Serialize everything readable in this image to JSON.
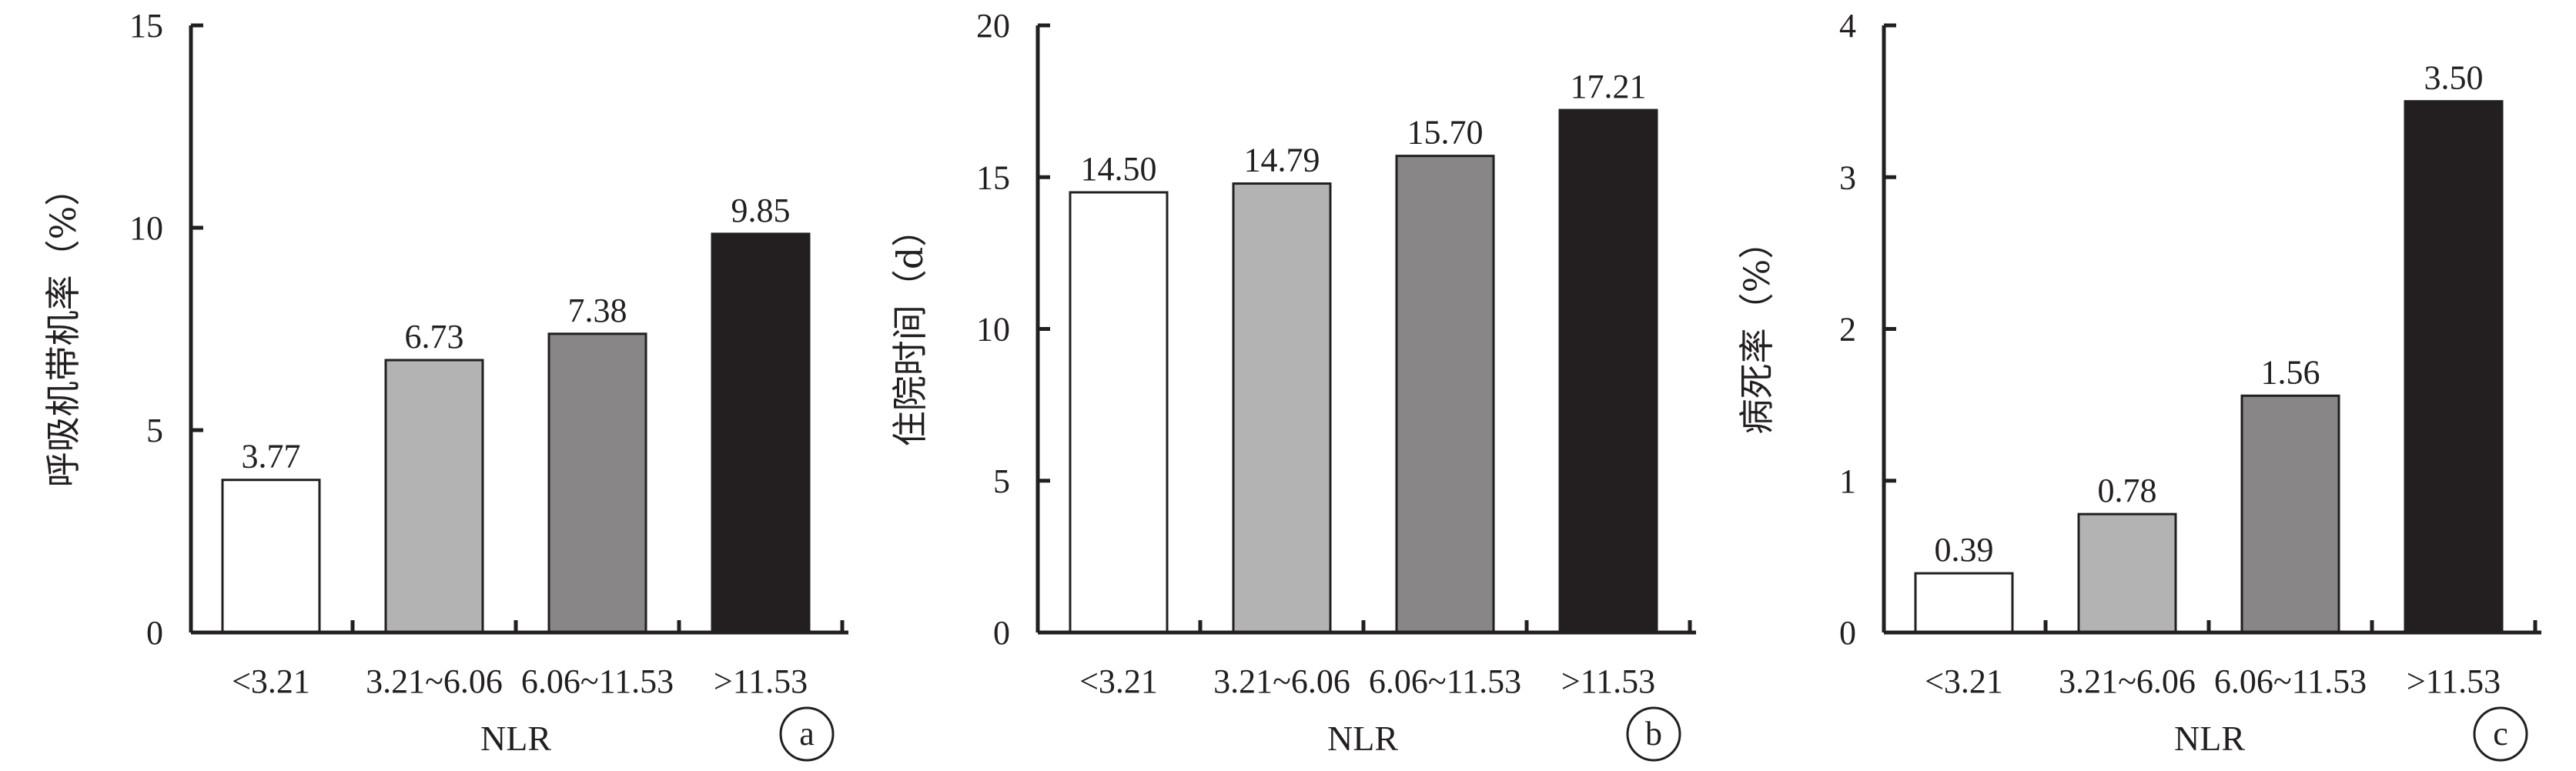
{
  "chart_data": [
    {
      "type": "bar",
      "panel": "a",
      "categories": [
        "<3.21",
        "3.21~6.06",
        "6.06~11.53",
        ">11.53"
      ],
      "values": [
        3.77,
        6.73,
        7.38,
        9.85
      ],
      "value_labels": [
        "3.77",
        "6.73",
        "7.38",
        "9.85"
      ],
      "xlabel": "NLR",
      "ylabel": "呼吸机带机率（%）",
      "ylim": [
        0,
        15
      ],
      "yticks": [
        0,
        5,
        10,
        15
      ],
      "colors": [
        "#ffffff",
        "#b3b3b3",
        "#888687",
        "#231f20"
      ],
      "grid": false
    },
    {
      "type": "bar",
      "panel": "b",
      "categories": [
        "<3.21",
        "3.21~6.06",
        "6.06~11.53",
        ">11.53"
      ],
      "values": [
        14.5,
        14.79,
        15.7,
        17.21
      ],
      "value_labels": [
        "14.50",
        "14.79",
        "15.70",
        "17.21"
      ],
      "xlabel": "NLR",
      "ylabel": "住院时间（d）",
      "ylim": [
        0,
        20
      ],
      "yticks": [
        0,
        5,
        10,
        15,
        20
      ],
      "colors": [
        "#ffffff",
        "#b3b3b3",
        "#888687",
        "#231f20"
      ],
      "grid": false
    },
    {
      "type": "bar",
      "panel": "c",
      "categories": [
        "<3.21",
        "3.21~6.06",
        "6.06~11.53",
        ">11.53"
      ],
      "values": [
        0.39,
        0.78,
        1.56,
        3.5
      ],
      "value_labels": [
        "0.39",
        "0.78",
        "1.56",
        "3.50"
      ],
      "xlabel": "NLR",
      "ylabel": "病死率（%）",
      "ylim": [
        0,
        4
      ],
      "yticks": [
        0,
        1,
        2,
        3,
        4
      ],
      "colors": [
        "#ffffff",
        "#b3b3b3",
        "#888687",
        "#231f20"
      ],
      "grid": false
    }
  ]
}
